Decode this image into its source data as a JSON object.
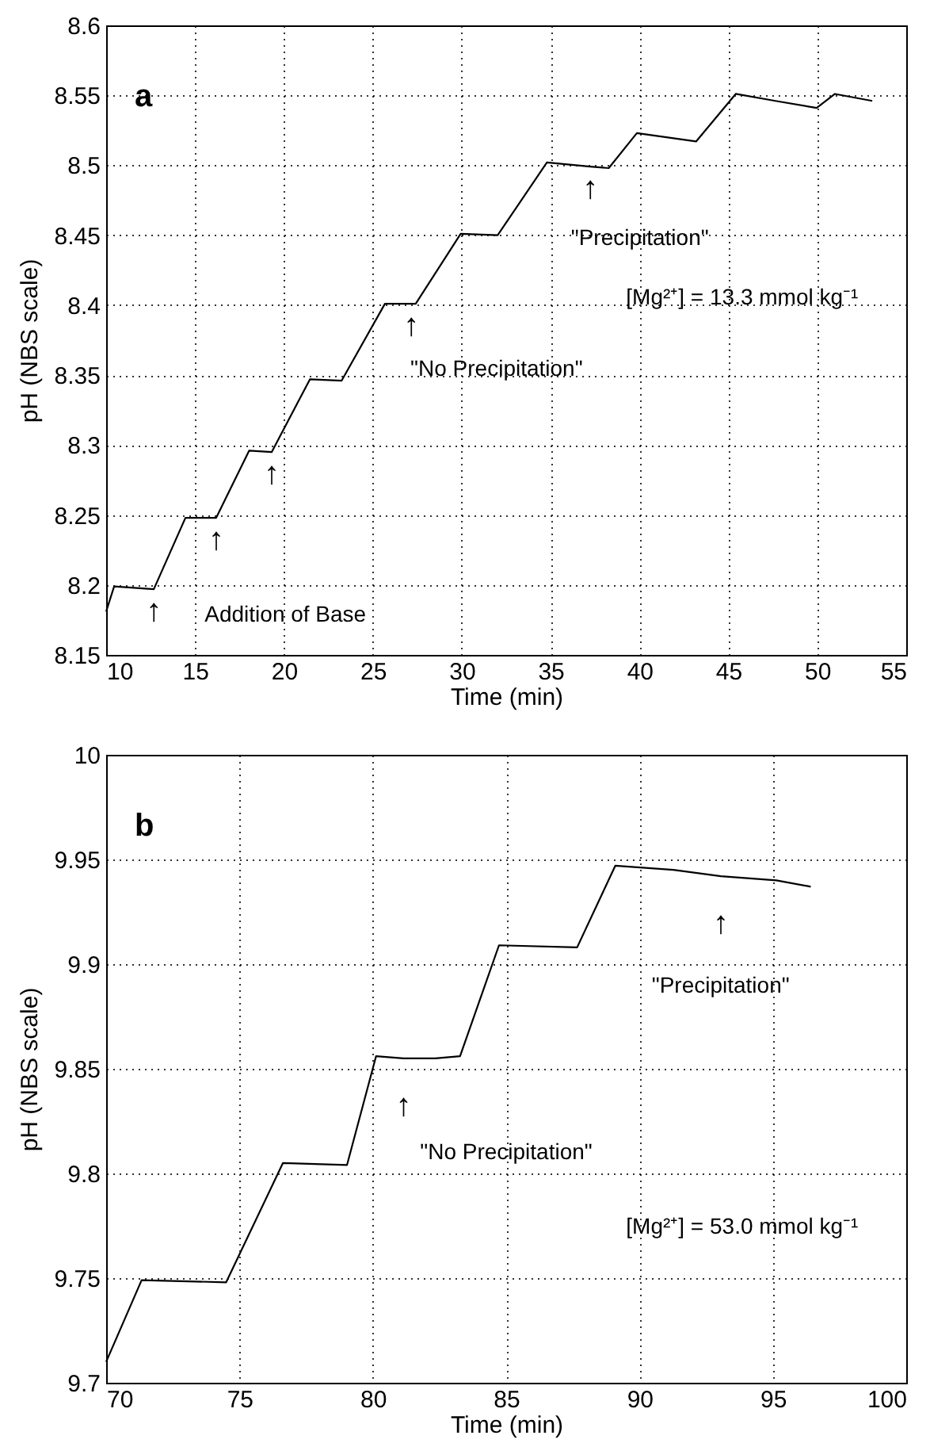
{
  "chart_data": [
    {
      "type": "line",
      "title": "a",
      "xlabel": "Time (min)",
      "ylabel": "pH (NBS scale)",
      "x": [
        10,
        10.45,
        12.68,
        14.46,
        16.19,
        18.04,
        19.31,
        21.46,
        23.24,
        25.68,
        27.17,
        27.41,
        29.94,
        32.02,
        34.79,
        37.23,
        38.27,
        39.85,
        43.18,
        45.41,
        47.64,
        49.96,
        50.99,
        53.09
      ],
      "series": [
        {
          "color": "#000000",
          "values": [
            8.181,
            8.199,
            8.197,
            8.248,
            8.248,
            8.296,
            8.295,
            8.347,
            8.346,
            8.401,
            8.401,
            8.401,
            8.451,
            8.45,
            8.502,
            8.499,
            8.498,
            8.523,
            8.517,
            8.551,
            8.546,
            8.541,
            8.551,
            8.546
          ]
        }
      ],
      "xlim": [
        10,
        55
      ],
      "ylim": [
        8.15,
        8.6
      ],
      "xticks": [
        10,
        15,
        20,
        25,
        30,
        35,
        40,
        45,
        50,
        55
      ],
      "yticks": [
        8.15,
        8.2,
        8.25,
        8.3,
        8.35,
        8.4,
        8.45,
        8.5,
        8.55,
        8.6
      ],
      "grid": true,
      "line_style": "solid",
      "annotations": [
        {
          "text": "↑",
          "x": 12.68,
          "y": 8.197
        },
        {
          "text": "↑",
          "x": 16.19,
          "y": 8.248
        },
        {
          "text": "↑",
          "x": 19.31,
          "y": 8.295
        },
        {
          "text": "↑",
          "x": 27.17,
          "y": 8.401
        },
        {
          "text": "↑",
          "x": 37.23,
          "y": 8.499
        },
        "Addition of Base",
        "\"No Precipitation\"",
        "\"Precipitation\"",
        "[Mg²⁺] = 13.3 mmol kg⁻¹"
      ]
    },
    {
      "type": "line",
      "title": "b",
      "xlabel": "Time (min)",
      "ylabel": "pH (NBS scale)",
      "x": [
        70,
        71.33,
        74.5,
        76.63,
        79.03,
        80.12,
        81.15,
        82.34,
        83.27,
        84.73,
        87.66,
        89.09,
        91.27,
        93.05,
        95.13,
        96.42
      ],
      "series": [
        {
          "color": "#000000",
          "values": [
            9.71,
            9.749,
            9.748,
            9.805,
            9.804,
            9.856,
            9.855,
            9.855,
            9.856,
            9.909,
            9.908,
            9.947,
            9.945,
            9.942,
            9.94,
            9.937
          ]
        }
      ],
      "xlim": [
        70,
        100
      ],
      "ylim": [
        9.7,
        10
      ],
      "xticks": [
        70,
        75,
        80,
        85,
        90,
        95,
        100
      ],
      "yticks": [
        9.7,
        9.75,
        9.8,
        9.85,
        9.9,
        9.95,
        10
      ],
      "grid": true,
      "line_style": "solid",
      "annotations": [
        {
          "text": "↑",
          "x": 81.15,
          "y": 9.855
        },
        {
          "text": "↑",
          "x": 93.05,
          "y": 9.942
        },
        "\"No Precipitation\"",
        "\"Precipitation\"",
        "[Mg²⁺] = 53.0 mmol kg⁻¹"
      ]
    }
  ]
}
